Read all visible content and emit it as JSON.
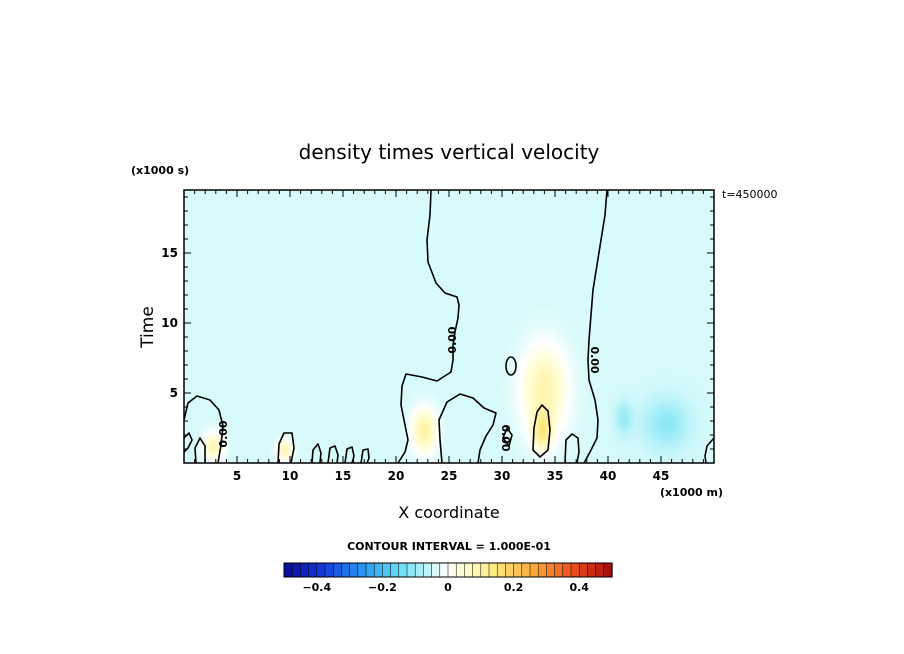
{
  "chart_data": {
    "type": "heatmap",
    "title": "density times vertical velocity",
    "xlabel": "X coordinate",
    "ylabel": "Time",
    "x_units": "(x1000 m)",
    "y_units": "(x1000 s)",
    "time_stamp": "t=450000",
    "xlim": [
      0,
      50
    ],
    "ylim": [
      0,
      19.5
    ],
    "x_ticks": [
      5,
      10,
      15,
      20,
      25,
      30,
      35,
      40,
      45
    ],
    "y_ticks": [
      5,
      10,
      15
    ],
    "contour_interval_label": "CONTOUR INTERVAL = 1.000E-01",
    "contour_label": "0.00",
    "colorbar": {
      "min": -0.5,
      "max": 0.5,
      "ticks": [
        -0.4,
        -0.2,
        0,
        0.2,
        0.4
      ],
      "tick_labels": [
        "−0.4",
        "−0.2",
        "0",
        "0.2",
        "0.4"
      ]
    },
    "background_value": -0.04,
    "features": [
      {
        "name": "updraft",
        "x": 34,
        "y": 5.2,
        "sx": 2.2,
        "sy": 3.2,
        "value": 0.09
      },
      {
        "name": "updraft-core",
        "x": 33.8,
        "y": 2.2,
        "sx": 0.9,
        "sy": 1.3,
        "value": 0.1
      },
      {
        "name": "updraft",
        "x": 22.7,
        "y": 2.3,
        "sx": 1.2,
        "sy": 1.6,
        "value": 0.1
      },
      {
        "name": "updraft",
        "x": 2.8,
        "y": 1.2,
        "sx": 1.0,
        "sy": 1.0,
        "value": 0.08
      },
      {
        "name": "updraft",
        "x": 9.5,
        "y": 0.9,
        "sx": 0.8,
        "sy": 0.8,
        "value": 0.08
      },
      {
        "name": "downdraft",
        "x": 45.5,
        "y": 2.8,
        "sx": 2.2,
        "sy": 1.8,
        "value": -0.07
      },
      {
        "name": "downdraft",
        "x": 41.5,
        "y": 3.2,
        "sx": 0.8,
        "sy": 1.2,
        "value": -0.06
      }
    ]
  }
}
